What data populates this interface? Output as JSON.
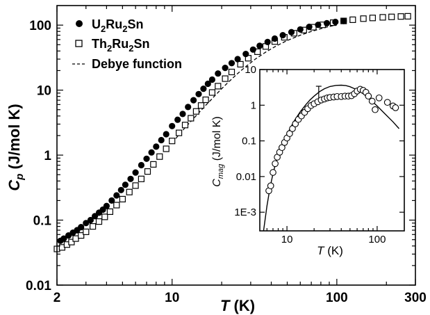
{
  "chart_data": [
    {
      "type": "scatter",
      "xscale": "log",
      "yscale": "log",
      "xlim": [
        2,
        300
      ],
      "ylim": [
        0.01,
        200
      ],
      "x_ticks": [
        2,
        10,
        100,
        300
      ],
      "x_tick_labels": [
        "2",
        "10",
        "100",
        "300"
      ],
      "y_ticks": [
        0.01,
        0.1,
        1,
        10,
        100
      ],
      "y_tick_labels": [
        "0.01",
        "0.1",
        "1",
        "10",
        "100"
      ],
      "xlabel": {
        "var": "T",
        "unit": "(K)"
      },
      "ylabel": {
        "var": "C",
        "sub": "p",
        "unit": "(J/mol K)"
      },
      "legend_position": "top-left",
      "grid": false,
      "series": [
        {
          "name": "U2Ru2Sn",
          "label_parts": [
            "U",
            "2",
            "Ru",
            "2",
            "Sn"
          ],
          "marker": "filled-circle",
          "color": "#000000",
          "x": [
            2.1,
            2.2,
            2.35,
            2.5,
            2.65,
            2.8,
            3.0,
            3.2,
            3.4,
            3.6,
            3.8,
            4.0,
            4.3,
            4.6,
            4.9,
            5.2,
            5.6,
            6.0,
            6.5,
            7.0,
            7.5,
            8.0,
            8.6,
            9.2,
            10.0,
            10.8,
            11.6,
            12.5,
            13.5,
            14.5,
            15.5,
            16.5,
            17.5,
            19,
            21,
            23,
            25,
            28,
            31,
            34,
            38,
            42,
            47,
            53,
            60,
            68,
            77,
            87,
            98,
            110
          ],
          "y": [
            0.048,
            0.052,
            0.058,
            0.064,
            0.07,
            0.078,
            0.09,
            0.1,
            0.115,
            0.13,
            0.145,
            0.165,
            0.2,
            0.24,
            0.29,
            0.35,
            0.43,
            0.54,
            0.7,
            0.88,
            1.1,
            1.35,
            1.7,
            2.1,
            2.8,
            3.5,
            4.3,
            5.5,
            7.0,
            8.7,
            10.5,
            12.5,
            14.5,
            18,
            22,
            26,
            30,
            36,
            42,
            48,
            55,
            62,
            70,
            78,
            86,
            94,
            101,
            107,
            112,
            116
          ]
        },
        {
          "name": "Th2Ru2Sn",
          "label_parts": [
            "Th",
            "2",
            "Ru",
            "2",
            "Sn"
          ],
          "marker": "open-square",
          "color": "#000000",
          "x": [
            2.0,
            2.15,
            2.3,
            2.45,
            2.6,
            2.8,
            3.0,
            3.3,
            3.6,
            3.9,
            4.2,
            4.6,
            5.0,
            5.5,
            6.0,
            6.5,
            7.1,
            7.7,
            8.4,
            9.2,
            10.0,
            11,
            12,
            13,
            14,
            15,
            16,
            17.5,
            19,
            21,
            23,
            26,
            29,
            33,
            37,
            42,
            48,
            55,
            63,
            72,
            82,
            95,
            110,
            125,
            145,
            165,
            190,
            215,
            245,
            270
          ],
          "y": [
            0.036,
            0.038,
            0.042,
            0.046,
            0.052,
            0.058,
            0.066,
            0.08,
            0.095,
            0.112,
            0.135,
            0.17,
            0.21,
            0.27,
            0.34,
            0.43,
            0.56,
            0.72,
            0.95,
            1.25,
            1.65,
            2.2,
            2.9,
            3.7,
            4.7,
            5.8,
            7.1,
            9.2,
            11.5,
            15,
            19,
            25,
            31,
            39,
            47,
            56,
            65,
            75,
            84,
            93,
            101,
            109,
            116,
            121,
            126,
            129,
            132,
            134,
            136,
            137
          ]
        },
        {
          "name": "Debye function",
          "marker": "dashed-line",
          "color": "#000000",
          "x": [
            10,
            11,
            12,
            13,
            14,
            15,
            16,
            17,
            18,
            20,
            22,
            25,
            28,
            32,
            37,
            43,
            50,
            60,
            70,
            85,
            100
          ],
          "y": [
            1.55,
            2.05,
            2.65,
            3.3,
            4.05,
            4.9,
            5.85,
            6.85,
            8.0,
            10.5,
            13.3,
            18,
            23,
            30,
            38.5,
            48,
            58,
            70,
            80,
            92,
            101
          ]
        }
      ]
    },
    {
      "type": "scatter",
      "inset": true,
      "xscale": "log",
      "yscale": "log",
      "xlim": [
        5,
        200
      ],
      "ylim": [
        0.0003,
        10
      ],
      "x_ticks": [
        10,
        100
      ],
      "x_tick_labels": [
        "10",
        "100"
      ],
      "y_ticks": [
        0.001,
        0.01,
        0.1,
        1,
        10
      ],
      "y_tick_labels": [
        "1E-3",
        "0.01",
        "0.1",
        "1",
        "10"
      ],
      "xlabel": {
        "var": "T",
        "unit": "(K)"
      },
      "ylabel": {
        "var": "C",
        "sub": "mag",
        "unit": "(J/mol K)"
      },
      "series": [
        {
          "marker": "open-circle",
          "color": "#000000",
          "x": [
            6.3,
            6.6,
            7.0,
            7.4,
            7.8,
            8.3,
            8.8,
            9.4,
            10.0,
            10.7,
            11.5,
            12.4,
            13.4,
            14.5,
            15.7,
            17,
            18.5,
            20,
            22,
            24,
            26,
            28,
            30,
            33,
            36,
            40,
            44,
            48,
            52,
            56,
            60,
            65,
            70,
            75,
            80,
            88,
            95,
            105,
            130,
            150,
            160
          ],
          "y": [
            0.004,
            0.0055,
            0.013,
            0.023,
            0.035,
            0.048,
            0.065,
            0.09,
            0.12,
            0.16,
            0.22,
            0.3,
            0.4,
            0.5,
            0.63,
            0.8,
            0.98,
            1.1,
            1.25,
            1.4,
            1.5,
            1.6,
            1.65,
            1.7,
            1.75,
            1.75,
            1.8,
            1.8,
            1.85,
            2.1,
            2.5,
            2.8,
            2.6,
            2.3,
            1.8,
            1.3,
            0.75,
            1.6,
            1.2,
            0.95,
            0.85
          ]
        },
        {
          "marker": "solid-line",
          "color": "#000000",
          "x": [
            5.5,
            6.0,
            6.5,
            7.0,
            7.5,
            8.0,
            9.0,
            10,
            11,
            12,
            14,
            16,
            18,
            20,
            23,
            26,
            30,
            35,
            40,
            45,
            50,
            60,
            70,
            80,
            100,
            120,
            150,
            175
          ],
          "y": [
            0.0003,
            0.0015,
            0.005,
            0.012,
            0.024,
            0.04,
            0.085,
            0.15,
            0.24,
            0.36,
            0.65,
            1.0,
            1.4,
            1.8,
            2.4,
            2.9,
            3.35,
            3.6,
            3.65,
            3.55,
            3.3,
            2.7,
            2.1,
            1.6,
            0.95,
            0.6,
            0.34,
            0.22
          ]
        }
      ],
      "error_bar": {
        "x": 22.5,
        "y": 1.7,
        "y_low": 1.3,
        "y_high": 3.4
      }
    }
  ]
}
